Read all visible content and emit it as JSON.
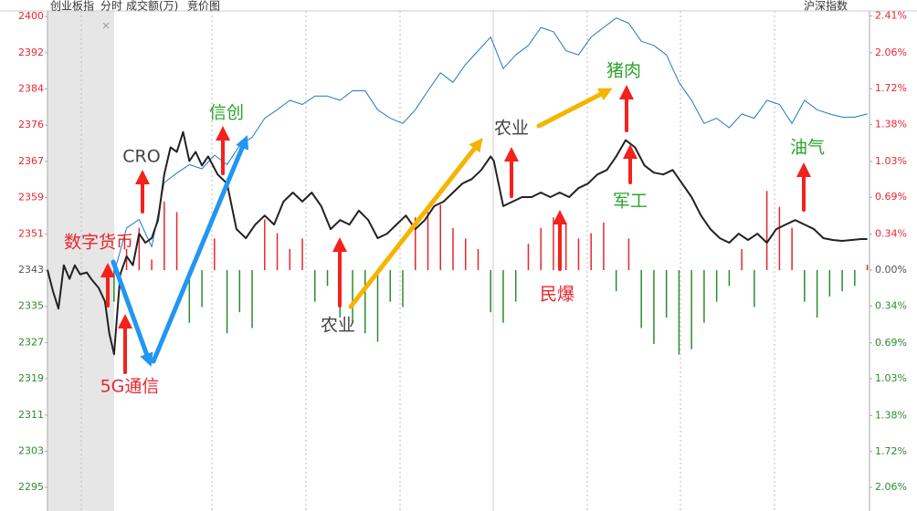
{
  "chart_data": {
    "type": "line",
    "header": {
      "title": "创业板指",
      "mode": "分时",
      "auction": "竞价图"
    },
    "xlim": [
      -21.2,
      240.7
    ],
    "ylim": [
      2290.1,
      2400.8
    ],
    "yticks": [
      {
        "value": 2399.57,
        "label": "2400"
      },
      {
        "value": 2391.55,
        "label": "2392"
      },
      {
        "value": 2383.53,
        "label": "2384"
      },
      {
        "value": 2375.51,
        "label": "2376"
      },
      {
        "value": 2367.49,
        "label": "2367"
      },
      {
        "value": 2359.47,
        "label": "2359"
      },
      {
        "value": 2351.45,
        "label": "2351"
      },
      {
        "value": 2343.43,
        "label": "2343"
      },
      {
        "value": 2335.41,
        "label": "2335"
      },
      {
        "value": 2327.39,
        "label": "2327"
      },
      {
        "value": 2319.37,
        "label": "2319"
      },
      {
        "value": 2311.35,
        "label": "2311"
      },
      {
        "value": 2303.33,
        "label": "2303"
      },
      {
        "value": 2295.31,
        "label": "2295"
      }
    ],
    "y2lim": [
      -2.284,
      2.457
    ],
    "y2ticks": [
      {
        "value": 2.41,
        "label": "2.41%"
      },
      {
        "value": 2.06,
        "label": "2.06%"
      },
      {
        "value": 1.72,
        "label": "1.72%"
      },
      {
        "value": 1.38,
        "label": "1.38%"
      },
      {
        "value": 1.03,
        "label": "1.03%"
      },
      {
        "value": 0.69,
        "label": "0.69%"
      },
      {
        "value": 0.34,
        "label": "0.34%"
      },
      {
        "value": 0,
        "label": "0.00%"
      },
      {
        "value": -0.34,
        "label": "0.34%"
      },
      {
        "value": -0.69,
        "label": "0.69%"
      },
      {
        "value": -1.03,
        "label": "1.03%"
      },
      {
        "value": -1.38,
        "label": "1.38%"
      },
      {
        "value": -1.72,
        "label": "1.72%"
      },
      {
        "value": -2.06,
        "label": "2.06%"
      }
    ],
    "up_color": "#e8262d",
    "down_color": "#2e8b2e",
    "flat_color": "#555555",
    "series": [
      {
        "name": "成交额(万)",
        "type": "bar",
        "axis": "y2",
        "color": "#e8262d",
        "down_color": "#2e8b2e",
        "x": [
          0,
          4,
          8,
          12,
          16,
          20,
          24,
          28,
          32,
          36,
          40,
          44,
          48,
          52,
          56,
          60,
          64,
          68,
          72,
          76,
          80,
          84,
          88,
          92,
          96,
          100,
          104,
          108,
          112,
          116,
          120,
          124,
          128,
          132,
          136,
          140,
          144,
          148,
          152,
          156,
          160,
          164,
          168,
          172,
          176,
          180,
          184,
          188,
          192,
          196,
          200,
          204,
          208,
          212,
          216,
          220,
          224,
          228,
          232,
          236,
          240
        ],
        "values": [
          -0.3,
          0.2,
          0.4,
          0.1,
          0.65,
          0.55,
          -0.5,
          -0.35,
          0.3,
          -0.6,
          -0.4,
          -0.55,
          0.48,
          0.35,
          0.2,
          0.3,
          -0.3,
          -0.15,
          -0.45,
          -0.5,
          -0.6,
          -0.68,
          -0.3,
          -0.35,
          0.5,
          0.55,
          0.62,
          0.4,
          0.3,
          0.2,
          -0.4,
          -0.5,
          -0.3,
          0.25,
          0.4,
          0.5,
          0.45,
          0.3,
          0.35,
          0.45,
          -0.2,
          0.3,
          -0.55,
          -0.7,
          -0.45,
          -0.8,
          -0.75,
          -0.5,
          -0.3,
          -0.15,
          0.2,
          -0.35,
          0.75,
          0.6,
          0.4,
          -0.3,
          -0.45,
          -0.25,
          -0.2,
          -0.15,
          0.05
        ]
      },
      {
        "name": "沪深指数",
        "type": "line",
        "axis": "y2",
        "color": "#1f78c8",
        "x": [
          0,
          4,
          8,
          12,
          16,
          20,
          24,
          28,
          32,
          36,
          40,
          44,
          48,
          52,
          56,
          60,
          64,
          68,
          72,
          76,
          80,
          84,
          88,
          92,
          96,
          100,
          104,
          108,
          112,
          116,
          120,
          124,
          128,
          132,
          136,
          140,
          144,
          148,
          152,
          156,
          160,
          164,
          168,
          172,
          176,
          180,
          184,
          188,
          192,
          196,
          200,
          204,
          208,
          212,
          216,
          220,
          224,
          228,
          232,
          236,
          240
        ],
        "values": [
          -0.03,
          0.4,
          0.48,
          0.22,
          0.83,
          0.92,
          1.0,
          0.96,
          1.09,
          1.0,
          1.18,
          1.26,
          1.44,
          1.52,
          1.61,
          1.57,
          1.65,
          1.65,
          1.61,
          1.7,
          1.7,
          1.52,
          1.44,
          1.39,
          1.52,
          1.7,
          1.87,
          1.78,
          1.95,
          2.08,
          2.21,
          1.91,
          2.04,
          2.13,
          2.3,
          2.26,
          2.08,
          2.04,
          2.21,
          2.3,
          2.39,
          2.34,
          2.17,
          2.13,
          2.04,
          1.78,
          1.61,
          1.39,
          1.44,
          1.35,
          1.48,
          1.44,
          1.61,
          1.57,
          1.39,
          1.61,
          1.52,
          1.48,
          1.45,
          1.45,
          1.48
        ]
      },
      {
        "name": "创业板指",
        "type": "line",
        "color": "#222222",
        "x": [
          -21.2,
          -19.5,
          -17.7,
          -16,
          -14.2,
          -12.5,
          -10.8,
          -8.7,
          -7.3,
          -4.9,
          -2.9,
          -1.5,
          0,
          2,
          4,
          6,
          8,
          10,
          12,
          14,
          16,
          18,
          20,
          22,
          24,
          26,
          28,
          30,
          33,
          36,
          39,
          42,
          45,
          48,
          51,
          54,
          57,
          60,
          63,
          66,
          69,
          72,
          75,
          78,
          81,
          84,
          87,
          90,
          93,
          96,
          99,
          102,
          105,
          108,
          111,
          114,
          117,
          120,
          121,
          124,
          127,
          130,
          133,
          136,
          139,
          142,
          145,
          148,
          151,
          154,
          157,
          160,
          163,
          166,
          169,
          172,
          175,
          178,
          181,
          184,
          187,
          190,
          193,
          196,
          199,
          202,
          205,
          208,
          211,
          214,
          217,
          220,
          223,
          226,
          229,
          232,
          235,
          238,
          240
        ],
        "values": [
          2343.5,
          2338.9,
          2334.9,
          2344.5,
          2341.5,
          2344.5,
          2342.5,
          2342.9,
          2341.5,
          2339.5,
          2336.5,
          2329.4,
          2324.8,
          2342.5,
          2346.5,
          2344.5,
          2351.5,
          2349.5,
          2350.5,
          2354.5,
          2364.6,
          2370.6,
          2369.6,
          2374.0,
          2367.6,
          2369.6,
          2366.6,
          2368.6,
          2364.6,
          2362.6,
          2352.5,
          2350.5,
          2353.5,
          2355.5,
          2353.5,
          2358.6,
          2360.6,
          2358.6,
          2360.6,
          2357.6,
          2352.5,
          2354.5,
          2353.5,
          2356.6,
          2354.5,
          2350.5,
          2351.5,
          2353.5,
          2355.5,
          2352.5,
          2354.5,
          2357.6,
          2358.6,
          2360.6,
          2362.6,
          2363.6,
          2365.6,
          2368.6,
          2367.6,
          2357.6,
          2358.6,
          2359.6,
          2359.6,
          2360.6,
          2359.6,
          2360.6,
          2359.6,
          2361.6,
          2362.6,
          2364.6,
          2365.6,
          2368.6,
          2372.2,
          2370.6,
          2366.6,
          2365.0,
          2364.6,
          2365.6,
          2362.6,
          2359.6,
          2355.5,
          2352.5,
          2350.5,
          2349.5,
          2351.5,
          2350.1,
          2351.5,
          2349.5,
          2352.5,
          2353.5,
          2354.5,
          2353.5,
          2352.5,
          2350.5,
          2350.1,
          2349.9,
          2350.1,
          2350.3,
          2350.3
        ]
      }
    ],
    "annotations": [
      {
        "text": "数字货币",
        "color": "#e8262d"
      },
      {
        "text": "5G通信",
        "color": "#e8262d"
      },
      {
        "text": "CRO",
        "color": "#444444"
      },
      {
        "text": "信创",
        "color": "#2aa52a"
      },
      {
        "text": "农业",
        "color": "#444444"
      },
      {
        "text": "农业",
        "color": "#444444"
      },
      {
        "text": "猪肉",
        "color": "#2aa52a"
      },
      {
        "text": "军工",
        "color": "#2aa52a"
      },
      {
        "text": "民爆",
        "color": "#e8262d"
      },
      {
        "text": "油气",
        "color": "#2aa52a"
      }
    ]
  }
}
